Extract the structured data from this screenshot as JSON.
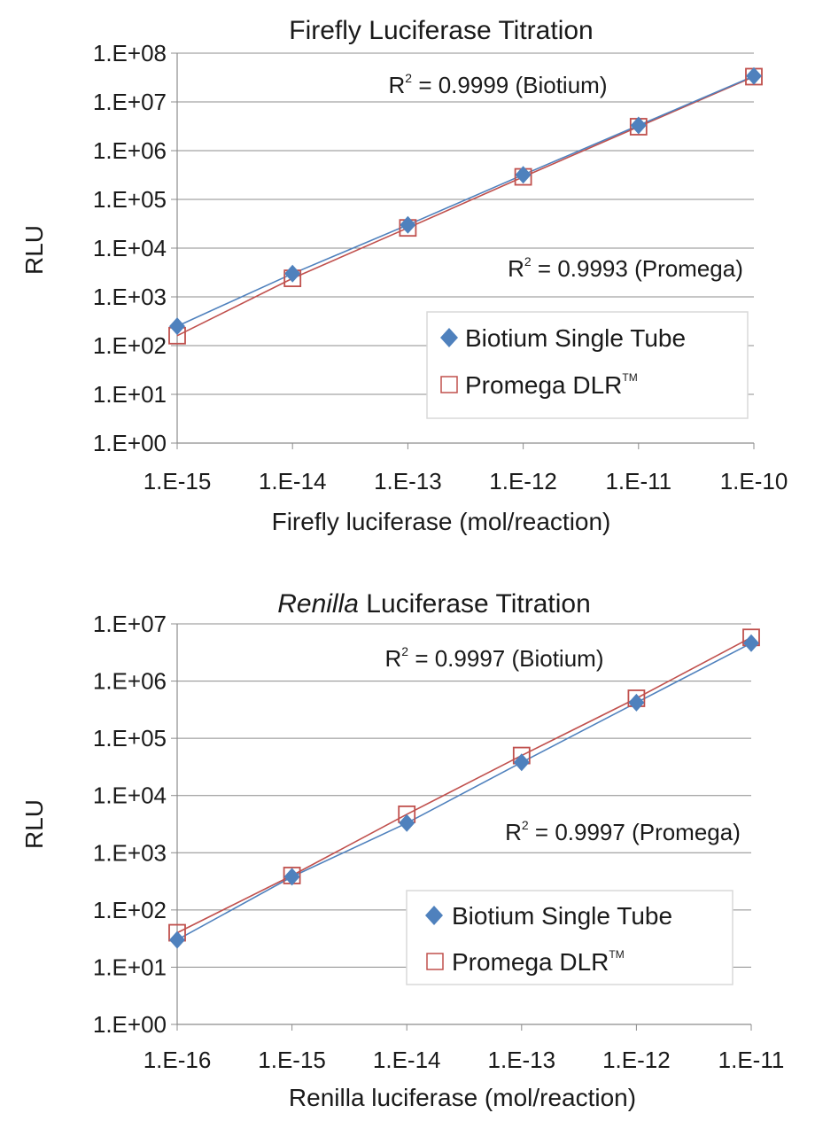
{
  "chart_data": [
    {
      "type": "line",
      "title": "Firefly Luciferase Titration",
      "xlabel": "Firefly luciferase (mol/reaction)",
      "ylabel": "RLU",
      "x_scale": "log",
      "y_scale": "log",
      "xlim": [
        1e-15,
        1e-10
      ],
      "ylim": [
        1,
        100000000
      ],
      "grid": true,
      "legend_position": "lower-right",
      "x_ticks": [
        "1.E-15",
        "1.E-14",
        "1.E-13",
        "1.E-12",
        "1.E-11",
        "1.E-10"
      ],
      "y_ticks": [
        "1.E+00",
        "1.E+01",
        "1.E+02",
        "1.E+03",
        "1.E+04",
        "1.E+05",
        "1.E+06",
        "1.E+07",
        "1.E+08"
      ],
      "x": [
        1e-15,
        1e-14,
        1e-13,
        1e-12,
        1e-11,
        1e-10
      ],
      "series": [
        {
          "name": "Biotium Single Tube",
          "marker": "diamond",
          "color": "#4f81bd",
          "values": [
            250,
            3000,
            30000,
            320000,
            3300000,
            34000000
          ]
        },
        {
          "name": "Promega DLR",
          "name_sup": "TM",
          "marker": "square",
          "color": "#c0504d",
          "values": [
            160,
            2400,
            26000,
            290000,
            3100000,
            33000000
          ]
        }
      ],
      "annotations": [
        {
          "base": "R",
          "sup": "2",
          "rest": " = 0.9999 (Biotium)"
        },
        {
          "base": "R",
          "sup": "2",
          "rest": " = 0.9993 (Promega)"
        }
      ]
    },
    {
      "type": "line",
      "title_italic": "Renilla",
      "title_rest": " Luciferase Titration",
      "xlabel": "Renilla luciferase (mol/reaction)",
      "ylabel": "RLU",
      "x_scale": "log",
      "y_scale": "log",
      "xlim": [
        1e-16,
        1e-11
      ],
      "ylim": [
        1,
        10000000
      ],
      "grid": true,
      "legend_position": "lower-right",
      "x_ticks": [
        "1.E-16",
        "1.E-15",
        "1.E-14",
        "1.E-13",
        "1.E-12",
        "1.E-11"
      ],
      "y_ticks": [
        "1.E+00",
        "1.E+01",
        "1.E+02",
        "1.E+03",
        "1.E+04",
        "1.E+05",
        "1.E+06",
        "1.E+07"
      ],
      "x": [
        1e-16,
        1e-15,
        1e-14,
        1e-13,
        1e-12,
        1e-11
      ],
      "series": [
        {
          "name": "Biotium Single Tube",
          "marker": "diamond",
          "color": "#4f81bd",
          "values": [
            30,
            380,
            3300,
            38000,
            420000,
            4600000
          ]
        },
        {
          "name": "Promega DLR",
          "name_sup": "TM",
          "marker": "square",
          "color": "#c0504d",
          "values": [
            40,
            400,
            4700,
            50000,
            500000,
            5800000
          ]
        }
      ],
      "annotations": [
        {
          "base": "R",
          "sup": "2",
          "rest": " = 0.9997 (Biotium)"
        },
        {
          "base": "R",
          "sup": "2",
          "rest": " = 0.9997 (Promega)"
        }
      ]
    }
  ]
}
